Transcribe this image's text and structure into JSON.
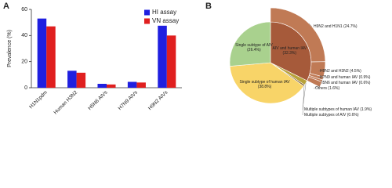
{
  "chart_data": [
    {
      "type": "bar",
      "panel_label": "A",
      "ylabel": "Prevalence (%)",
      "categories": [
        "H1N1pdm",
        "Human H3N2",
        "H5N6 AIVs",
        "H7N9 AIVs",
        "H9N2 AIVs"
      ],
      "series": [
        {
          "name": "HI assay",
          "color": "#1f1fe0",
          "values": [
            53,
            13,
            3,
            4.5,
            47.5
          ]
        },
        {
          "name": "VN assay",
          "color": "#e01f1f",
          "values": [
            47,
            11.5,
            2.5,
            4,
            40
          ]
        }
      ],
      "ylim": [
        0,
        60
      ],
      "yticks": [
        0,
        20,
        40,
        60
      ],
      "legend": "upper right"
    },
    {
      "type": "pie",
      "panel_label": "B",
      "slices": [
        {
          "label": "AIV and human IAV",
          "value": 32.3,
          "value_label": "(32.3%)",
          "color": "#a65a3a",
          "children": [
            {
              "label": "H9N2 and H1N1",
              "value": 24.7,
              "value_label": "(24.7%)"
            },
            {
              "label": "H9N2 and H3N2",
              "value": 4.5,
              "value_label": "(4.5%)"
            },
            {
              "label": "H7N9 and human IAV",
              "value": 0.9,
              "value_label": "(0.9%)"
            },
            {
              "label": "H5N6 and human IAV",
              "value": 0.6,
              "value_label": "(0.6%)"
            },
            {
              "label": "Others",
              "value": 1.6,
              "value_label": "(1.6%)"
            }
          ]
        },
        {
          "label": "Multiple subtypes of human IAV",
          "value": 1.9,
          "value_label": "(1.9%)",
          "color": "#b8a23a"
        },
        {
          "label": "Multiple subtypes of AIV",
          "value": 0.6,
          "value_label": "(0.6%)",
          "color": "#7a5a2a"
        },
        {
          "label": "Single subtype of human IAV",
          "value": 38.8,
          "value_label": "(38.8%)",
          "color": "#f8d468"
        },
        {
          "label": "Single subtype of AIV",
          "value": 26.4,
          "value_label": "(26.4%)",
          "color": "#a9d18e"
        }
      ]
    }
  ]
}
